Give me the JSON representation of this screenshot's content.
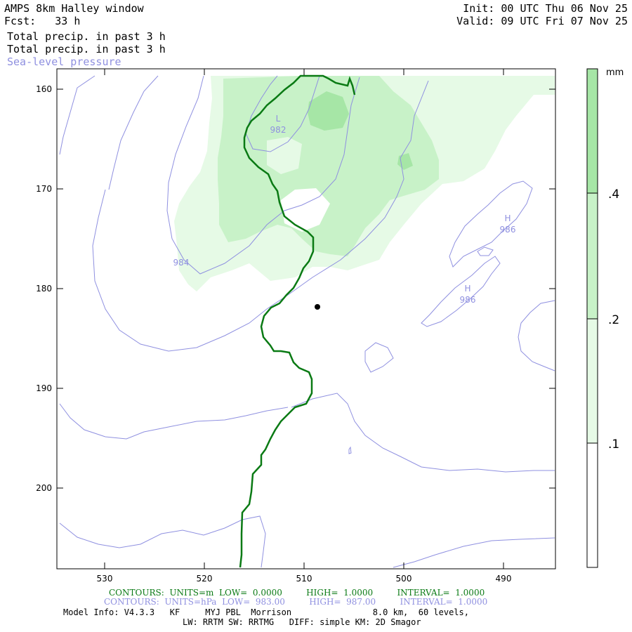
{
  "header": {
    "title": "AMPS 8km Halley window",
    "fcst": "Fcst:   33 h",
    "init": "Init: 00 UTC Thu 06 Nov 25",
    "valid": "Valid: 09 UTC Fri 07 Nov 25",
    "field1": "Total precip. in past 3 h",
    "field2": "Total precip. in past 3 h",
    "field3": "Sea-level pressure"
  },
  "map": {
    "y_ticks": [
      "160",
      "170",
      "180",
      "190",
      "200"
    ],
    "x_ticks": [
      "530",
      "520",
      "510",
      "500",
      "490"
    ],
    "pressure_labels": [
      {
        "text": "L",
        "value": "982"
      },
      {
        "text": "",
        "value": "984"
      },
      {
        "text": "H",
        "value": "986"
      },
      {
        "text": "H",
        "value": "986"
      }
    ]
  },
  "colorbar": {
    "unit": "mm",
    "levels": [
      ".4",
      ".2",
      ".1"
    ]
  },
  "footer": {
    "contours_green": "CONTOURS:  UNITS=m  LOW=  0.0000         HIGH=  1.0000         INTERVAL=  1.0000",
    "contours_purple": "CONTOURS:  UNITS=hPa  LOW=  983.00         HIGH=  987.00         INTERVAL=  1.0000",
    "model_info": "Model Info: V4.3.3   KF     MYJ PBL  Morrison                8.0 km,  60 levels,",
    "physics": "LW: RRTM SW: RRTMG   DIFF: simple KM: 2D Smagor"
  },
  "colors": {
    "precip_light": "#e6fae6",
    "precip_mid": "#c8f2c8",
    "precip_dark": "#a6e6a6",
    "pressure_line": "#8f90e0",
    "coast_line": "#0a7a14"
  }
}
